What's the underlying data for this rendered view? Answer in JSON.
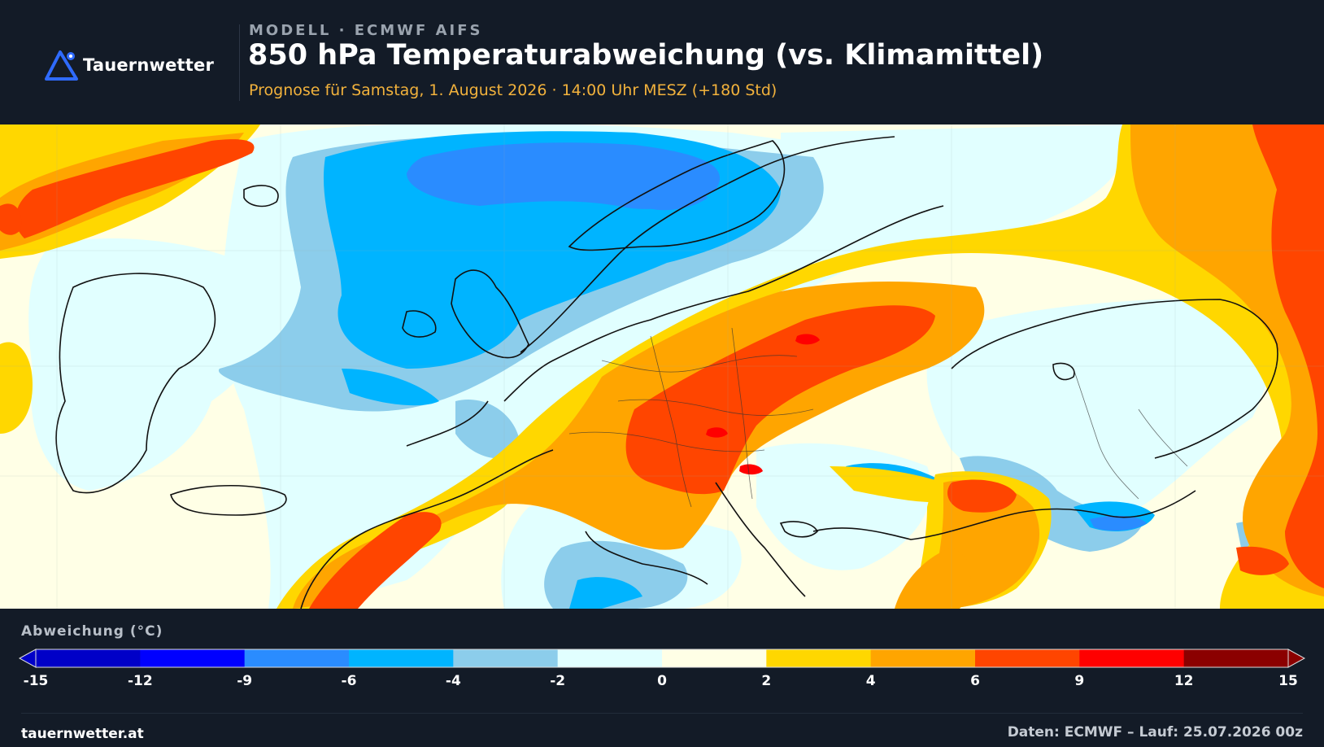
{
  "brand": {
    "name": "Tauernwetter",
    "logo_icon": "mountain-triangle-icon",
    "accent": "#2f6bff"
  },
  "header": {
    "kicker": "MODELL · ECMWF AIFS",
    "title": "850 hPa Temperaturabweichung (vs. Klimamittel)",
    "subtitle": "Prognose für Samstag, 1. August 2026 · 14:00 Uhr MESZ  (+180 Std)",
    "subtitle_color": "#f2b23c"
  },
  "legend": {
    "title": "Abweichung (°C)",
    "ticks": [
      "-15",
      "-12",
      "-9",
      "-6",
      "-4",
      "-2",
      "0",
      "2",
      "4",
      "6",
      "9",
      "12",
      "15"
    ],
    "colors": [
      "#0000c8",
      "#0000ff",
      "#2a8cff",
      "#00b4ff",
      "#8ccdeb",
      "#e1ffff",
      "#ffffe6",
      "#ffd700",
      "#ffa500",
      "#ff4500",
      "#ff0000",
      "#8b0000"
    ]
  },
  "footer": {
    "site": "tauernwetter.at",
    "source": "Daten: ECMWF – Lauf: 25.07.2026 00z"
  }
}
